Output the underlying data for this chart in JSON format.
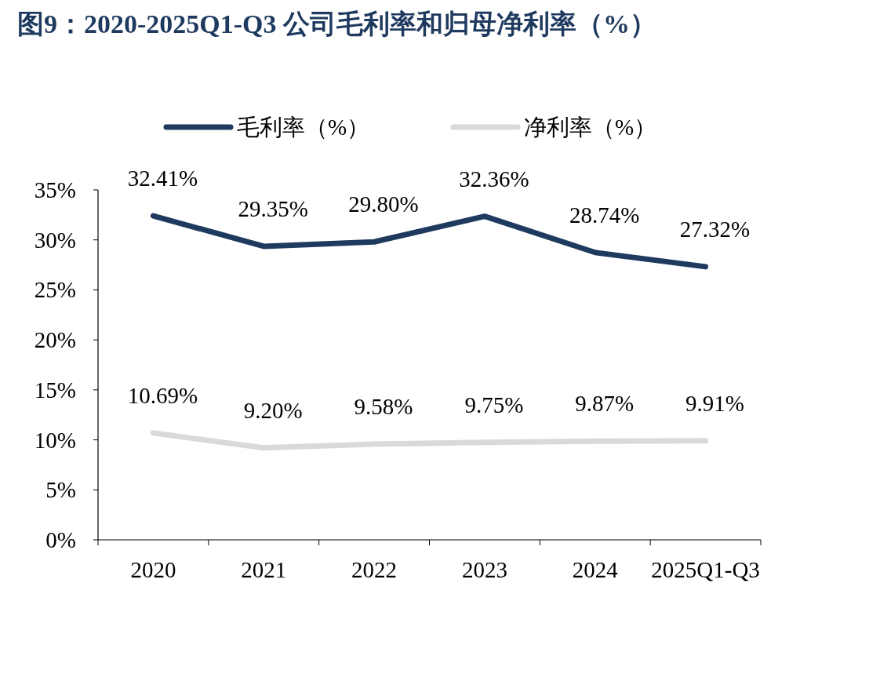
{
  "chart_data": {
    "type": "line",
    "title": "图9：2020-2025Q1-Q3 公司毛利率和归母净利率（%）",
    "categories": [
      "2020",
      "2021",
      "2022",
      "2023",
      "2024",
      "2025Q1-Q3"
    ],
    "series": [
      {
        "name": "毛利率（%）",
        "color": "#1f3a5f",
        "values": [
          32.41,
          29.35,
          29.8,
          32.36,
          28.74,
          27.32
        ],
        "value_labels": [
          "32.41%",
          "29.35%",
          "29.80%",
          "32.36%",
          "28.74%",
          "27.32%"
        ]
      },
      {
        "name": "净利率（%）",
        "color": "#d9d9d9",
        "values": [
          10.69,
          9.2,
          9.58,
          9.75,
          9.87,
          9.91
        ],
        "value_labels": [
          "10.69%",
          "9.20%",
          "9.58%",
          "9.75%",
          "9.87%",
          "9.91%"
        ]
      }
    ],
    "ylim": [
      0,
      35
    ],
    "yticks": [
      {
        "value": 0,
        "label": "0%"
      },
      {
        "value": 5,
        "label": "5%"
      },
      {
        "value": 10,
        "label": "10%"
      },
      {
        "value": 15,
        "label": "15%"
      },
      {
        "value": 20,
        "label": "20%"
      },
      {
        "value": 25,
        "label": "25%"
      },
      {
        "value": 30,
        "label": "30%"
      },
      {
        "value": 35,
        "label": "35%"
      }
    ],
    "grid": false,
    "legend": "top",
    "marker": "none",
    "line_style": "solid"
  }
}
